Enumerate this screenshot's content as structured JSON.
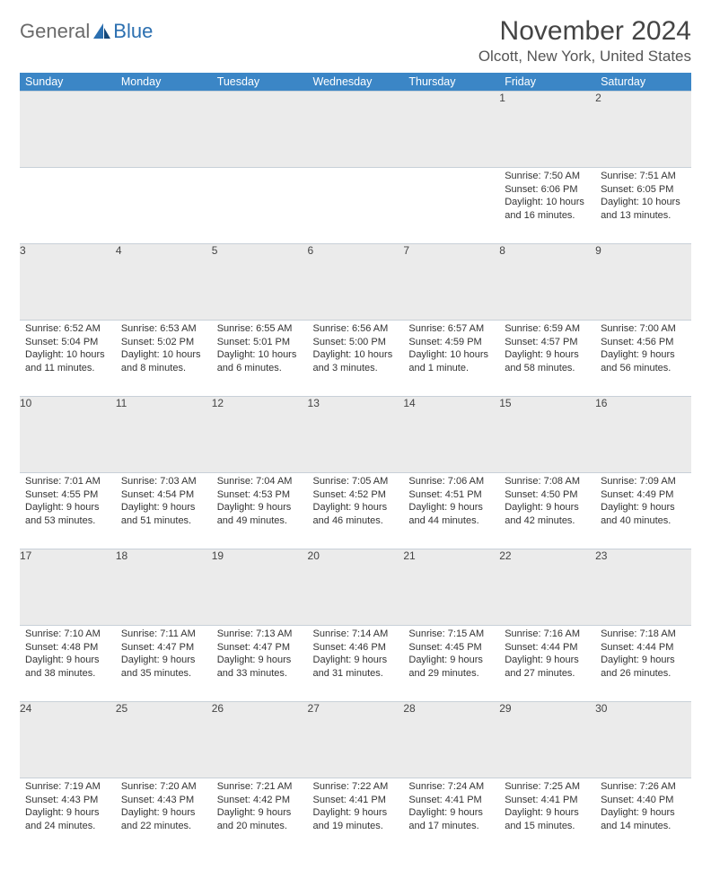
{
  "logo": {
    "general": "General",
    "blue": "Blue"
  },
  "title": "November 2024",
  "location": "Olcott, New York, United States",
  "colors": {
    "header_bg": "#3b86c6",
    "row_sep": "#9bb2c8",
    "daynum_bg": "#ebebeb"
  },
  "day_headers": [
    "Sunday",
    "Monday",
    "Tuesday",
    "Wednesday",
    "Thursday",
    "Friday",
    "Saturday"
  ],
  "weeks": [
    [
      null,
      null,
      null,
      null,
      null,
      {
        "n": "1",
        "sunrise": "7:50 AM",
        "sunset": "6:06 PM",
        "daylight": "10 hours and 16 minutes."
      },
      {
        "n": "2",
        "sunrise": "7:51 AM",
        "sunset": "6:05 PM",
        "daylight": "10 hours and 13 minutes."
      }
    ],
    [
      {
        "n": "3",
        "sunrise": "6:52 AM",
        "sunset": "5:04 PM",
        "daylight": "10 hours and 11 minutes."
      },
      {
        "n": "4",
        "sunrise": "6:53 AM",
        "sunset": "5:02 PM",
        "daylight": "10 hours and 8 minutes."
      },
      {
        "n": "5",
        "sunrise": "6:55 AM",
        "sunset": "5:01 PM",
        "daylight": "10 hours and 6 minutes."
      },
      {
        "n": "6",
        "sunrise": "6:56 AM",
        "sunset": "5:00 PM",
        "daylight": "10 hours and 3 minutes."
      },
      {
        "n": "7",
        "sunrise": "6:57 AM",
        "sunset": "4:59 PM",
        "daylight": "10 hours and 1 minute."
      },
      {
        "n": "8",
        "sunrise": "6:59 AM",
        "sunset": "4:57 PM",
        "daylight": "9 hours and 58 minutes."
      },
      {
        "n": "9",
        "sunrise": "7:00 AM",
        "sunset": "4:56 PM",
        "daylight": "9 hours and 56 minutes."
      }
    ],
    [
      {
        "n": "10",
        "sunrise": "7:01 AM",
        "sunset": "4:55 PM",
        "daylight": "9 hours and 53 minutes."
      },
      {
        "n": "11",
        "sunrise": "7:03 AM",
        "sunset": "4:54 PM",
        "daylight": "9 hours and 51 minutes."
      },
      {
        "n": "12",
        "sunrise": "7:04 AM",
        "sunset": "4:53 PM",
        "daylight": "9 hours and 49 minutes."
      },
      {
        "n": "13",
        "sunrise": "7:05 AM",
        "sunset": "4:52 PM",
        "daylight": "9 hours and 46 minutes."
      },
      {
        "n": "14",
        "sunrise": "7:06 AM",
        "sunset": "4:51 PM",
        "daylight": "9 hours and 44 minutes."
      },
      {
        "n": "15",
        "sunrise": "7:08 AM",
        "sunset": "4:50 PM",
        "daylight": "9 hours and 42 minutes."
      },
      {
        "n": "16",
        "sunrise": "7:09 AM",
        "sunset": "4:49 PM",
        "daylight": "9 hours and 40 minutes."
      }
    ],
    [
      {
        "n": "17",
        "sunrise": "7:10 AM",
        "sunset": "4:48 PM",
        "daylight": "9 hours and 38 minutes."
      },
      {
        "n": "18",
        "sunrise": "7:11 AM",
        "sunset": "4:47 PM",
        "daylight": "9 hours and 35 minutes."
      },
      {
        "n": "19",
        "sunrise": "7:13 AM",
        "sunset": "4:47 PM",
        "daylight": "9 hours and 33 minutes."
      },
      {
        "n": "20",
        "sunrise": "7:14 AM",
        "sunset": "4:46 PM",
        "daylight": "9 hours and 31 minutes."
      },
      {
        "n": "21",
        "sunrise": "7:15 AM",
        "sunset": "4:45 PM",
        "daylight": "9 hours and 29 minutes."
      },
      {
        "n": "22",
        "sunrise": "7:16 AM",
        "sunset": "4:44 PM",
        "daylight": "9 hours and 27 minutes."
      },
      {
        "n": "23",
        "sunrise": "7:18 AM",
        "sunset": "4:44 PM",
        "daylight": "9 hours and 26 minutes."
      }
    ],
    [
      {
        "n": "24",
        "sunrise": "7:19 AM",
        "sunset": "4:43 PM",
        "daylight": "9 hours and 24 minutes."
      },
      {
        "n": "25",
        "sunrise": "7:20 AM",
        "sunset": "4:43 PM",
        "daylight": "9 hours and 22 minutes."
      },
      {
        "n": "26",
        "sunrise": "7:21 AM",
        "sunset": "4:42 PM",
        "daylight": "9 hours and 20 minutes."
      },
      {
        "n": "27",
        "sunrise": "7:22 AM",
        "sunset": "4:41 PM",
        "daylight": "9 hours and 19 minutes."
      },
      {
        "n": "28",
        "sunrise": "7:24 AM",
        "sunset": "4:41 PM",
        "daylight": "9 hours and 17 minutes."
      },
      {
        "n": "29",
        "sunrise": "7:25 AM",
        "sunset": "4:41 PM",
        "daylight": "9 hours and 15 minutes."
      },
      {
        "n": "30",
        "sunrise": "7:26 AM",
        "sunset": "4:40 PM",
        "daylight": "9 hours and 14 minutes."
      }
    ]
  ],
  "labels": {
    "sunrise_prefix": "Sunrise: ",
    "sunset_prefix": "Sunset: ",
    "daylight_prefix": "Daylight: "
  }
}
